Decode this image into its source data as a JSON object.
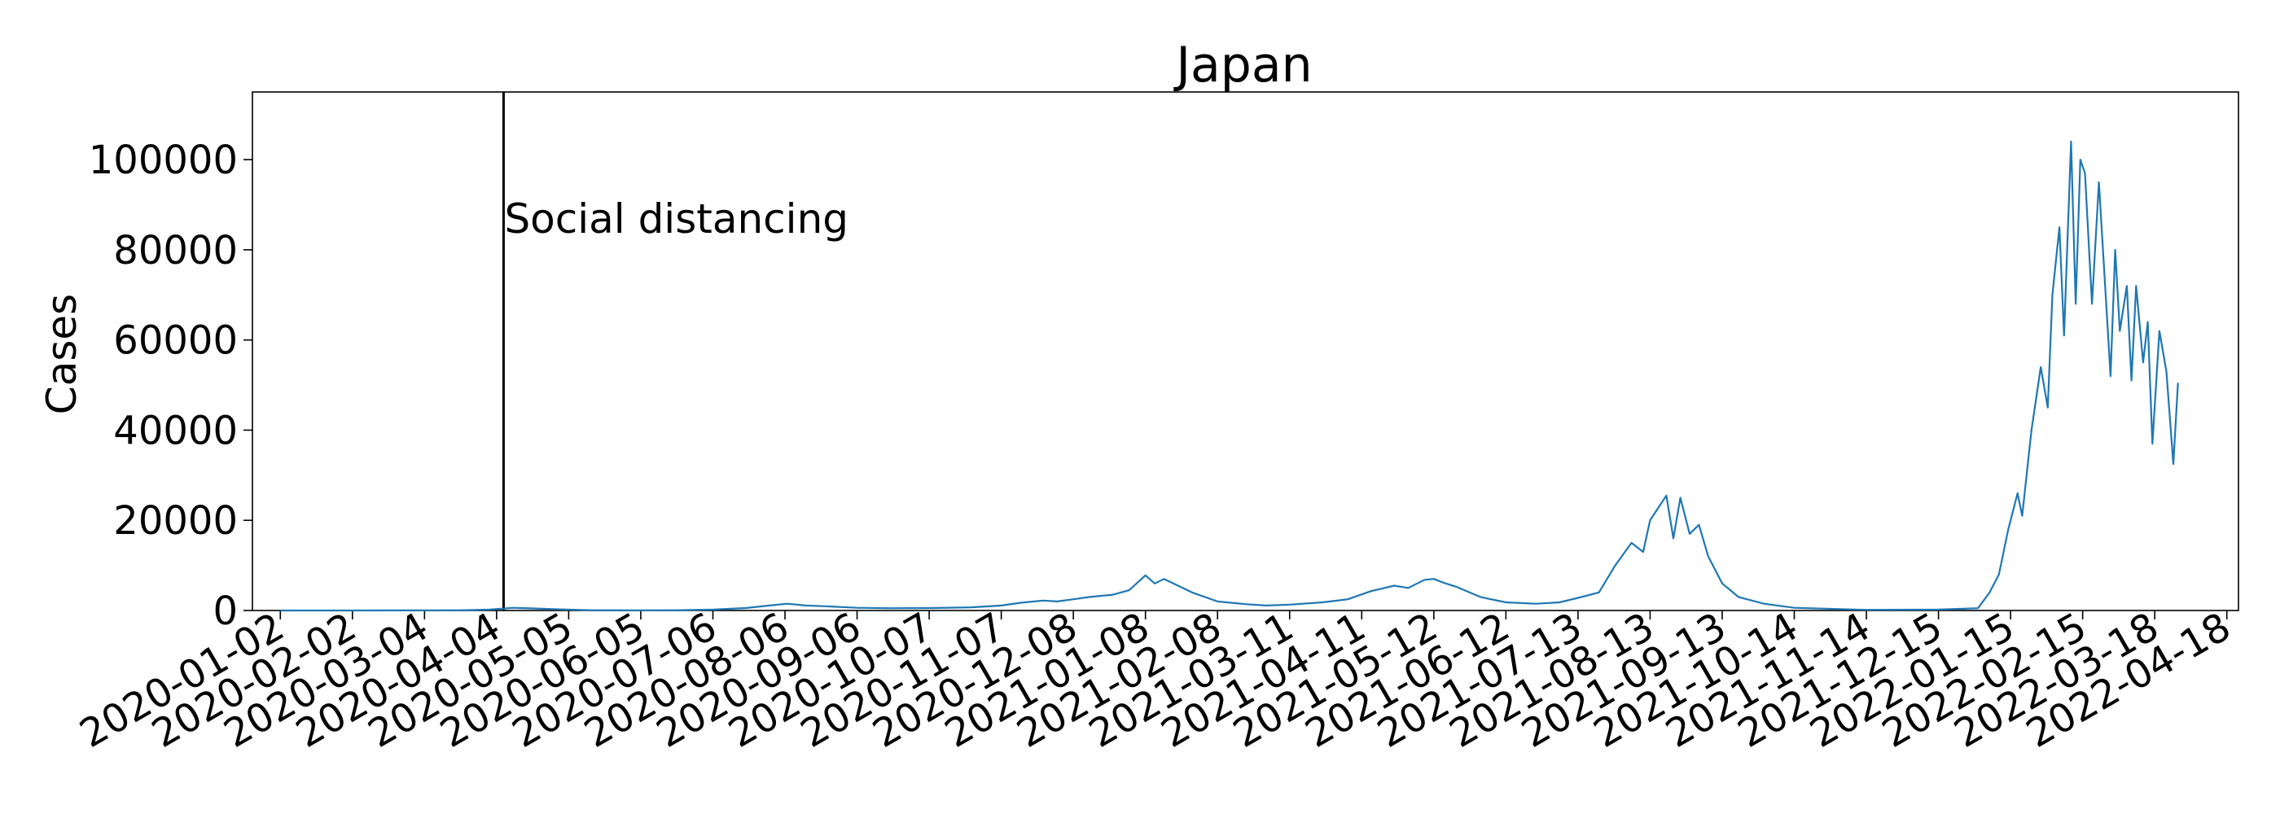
{
  "chart_data": {
    "type": "line",
    "title": "Japan",
    "xlabel": "",
    "ylabel": "Cases",
    "x_start": "2020-01-02",
    "x_ticks": [
      "2020-01-02",
      "2020-02-02",
      "2020-03-04",
      "2020-04-04",
      "2020-05-05",
      "2020-06-05",
      "2020-07-06",
      "2020-08-06",
      "2020-09-06",
      "2020-10-07",
      "2020-11-07",
      "2020-12-08",
      "2021-01-08",
      "2021-02-08",
      "2021-03-11",
      "2021-04-11",
      "2021-05-12",
      "2021-06-12",
      "2021-07-13",
      "2021-08-13",
      "2021-09-13",
      "2021-10-14",
      "2021-11-14",
      "2021-12-15",
      "2022-01-15",
      "2022-02-15",
      "2022-03-18",
      "2022-04-18"
    ],
    "y_ticks": [
      "0",
      "20000",
      "40000",
      "60000",
      "80000",
      "100000"
    ],
    "ylim": [
      0,
      115000
    ],
    "xlim": [
      "2019-12-21",
      "2022-04-23"
    ],
    "grid": false,
    "legend": "none",
    "colors": {
      "line": "#1f77b4",
      "axes": "#000000",
      "event_line": "#000000"
    },
    "series": [
      {
        "name": "",
        "points": [
          [
            "2020-01-02",
            0
          ],
          [
            "2020-02-01",
            3
          ],
          [
            "2020-02-20",
            15
          ],
          [
            "2020-03-05",
            40
          ],
          [
            "2020-03-20",
            50
          ],
          [
            "2020-04-01",
            200
          ],
          [
            "2020-04-11",
            600
          ],
          [
            "2020-04-20",
            450
          ],
          [
            "2020-05-01",
            250
          ],
          [
            "2020-05-15",
            60
          ],
          [
            "2020-05-31",
            30
          ],
          [
            "2020-06-20",
            50
          ],
          [
            "2020-07-06",
            200
          ],
          [
            "2020-07-20",
            550
          ],
          [
            "2020-08-01",
            1200
          ],
          [
            "2020-08-07",
            1500
          ],
          [
            "2020-08-15",
            1100
          ],
          [
            "2020-08-25",
            900
          ],
          [
            "2020-09-06",
            600
          ],
          [
            "2020-09-20",
            500
          ],
          [
            "2020-10-07",
            550
          ],
          [
            "2020-10-25",
            700
          ],
          [
            "2020-11-07",
            1100
          ],
          [
            "2020-11-15",
            1700
          ],
          [
            "2020-11-25",
            2200
          ],
          [
            "2020-12-01",
            2000
          ],
          [
            "2020-12-08",
            2500
          ],
          [
            "2020-12-15",
            3000
          ],
          [
            "2020-12-25",
            3500
          ],
          [
            "2021-01-01",
            4500
          ],
          [
            "2021-01-08",
            7800
          ],
          [
            "2021-01-12",
            6000
          ],
          [
            "2021-01-16",
            7000
          ],
          [
            "2021-01-22",
            5500
          ],
          [
            "2021-01-28",
            4000
          ],
          [
            "2021-02-08",
            2000
          ],
          [
            "2021-02-20",
            1400
          ],
          [
            "2021-03-01",
            1100
          ],
          [
            "2021-03-11",
            1300
          ],
          [
            "2021-03-25",
            1800
          ],
          [
            "2021-04-05",
            2500
          ],
          [
            "2021-04-15",
            4300
          ],
          [
            "2021-04-25",
            5500
          ],
          [
            "2021-05-01",
            5000
          ],
          [
            "2021-05-08",
            6800
          ],
          [
            "2021-05-12",
            7000
          ],
          [
            "2021-05-16",
            6200
          ],
          [
            "2021-05-22",
            5200
          ],
          [
            "2021-06-01",
            3000
          ],
          [
            "2021-06-12",
            1800
          ],
          [
            "2021-06-25",
            1500
          ],
          [
            "2021-07-05",
            1800
          ],
          [
            "2021-07-13",
            2800
          ],
          [
            "2021-07-22",
            4000
          ],
          [
            "2021-07-29",
            10000
          ],
          [
            "2021-08-05",
            15000
          ],
          [
            "2021-08-10",
            13000
          ],
          [
            "2021-08-13",
            20000
          ],
          [
            "2021-08-20",
            25500
          ],
          [
            "2021-08-23",
            16000
          ],
          [
            "2021-08-26",
            25000
          ],
          [
            "2021-08-30",
            17000
          ],
          [
            "2021-09-03",
            19000
          ],
          [
            "2021-09-07",
            12000
          ],
          [
            "2021-09-13",
            6000
          ],
          [
            "2021-09-20",
            3000
          ],
          [
            "2021-10-01",
            1500
          ],
          [
            "2021-10-14",
            600
          ],
          [
            "2021-11-14",
            150
          ],
          [
            "2021-12-15",
            200
          ],
          [
            "2022-01-01",
            500
          ],
          [
            "2022-01-06",
            4000
          ],
          [
            "2022-01-10",
            8000
          ],
          [
            "2022-01-14",
            18000
          ],
          [
            "2022-01-18",
            26000
          ],
          [
            "2022-01-20",
            21000
          ],
          [
            "2022-01-24",
            40000
          ],
          [
            "2022-01-28",
            54000
          ],
          [
            "2022-01-31",
            45000
          ],
          [
            "2022-02-02",
            70000
          ],
          [
            "2022-02-05",
            85000
          ],
          [
            "2022-02-07",
            61000
          ],
          [
            "2022-02-10",
            104000
          ],
          [
            "2022-02-12",
            68000
          ],
          [
            "2022-02-14",
            100000
          ],
          [
            "2022-02-16",
            97000
          ],
          [
            "2022-02-19",
            68000
          ],
          [
            "2022-02-22",
            95000
          ],
          [
            "2022-02-27",
            52000
          ],
          [
            "2022-03-01",
            80000
          ],
          [
            "2022-03-03",
            62000
          ],
          [
            "2022-03-06",
            72000
          ],
          [
            "2022-03-08",
            51000
          ],
          [
            "2022-03-10",
            72000
          ],
          [
            "2022-03-13",
            55000
          ],
          [
            "2022-03-15",
            64000
          ],
          [
            "2022-03-17",
            37000
          ],
          [
            "2022-03-20",
            62000
          ],
          [
            "2022-03-23",
            53000
          ],
          [
            "2022-03-26",
            32500
          ],
          [
            "2022-03-28",
            50500
          ]
        ]
      }
    ],
    "annotations": [
      {
        "type": "vline",
        "x": "2020-04-07",
        "label": "Social distancing"
      }
    ]
  }
}
